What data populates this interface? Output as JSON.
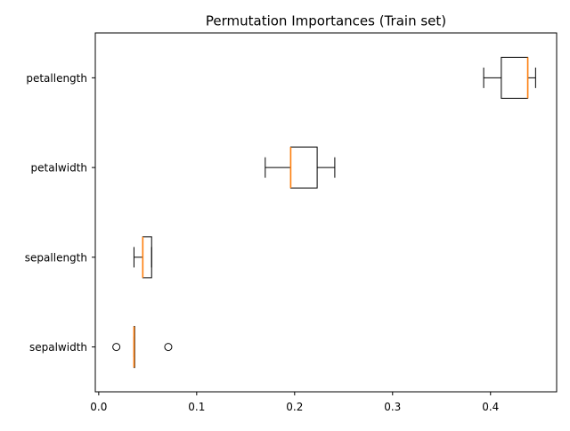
{
  "chart_data": {
    "type": "box",
    "title": "Permutation Importances (Train set)",
    "xlabel": "",
    "ylabel": "",
    "xlim": [
      -0.0035,
      0.4675
    ],
    "xticks": [
      0.0,
      0.1,
      0.2,
      0.3,
      0.4
    ],
    "xtick_labels": [
      "0.0",
      "0.1",
      "0.2",
      "0.3",
      "0.4"
    ],
    "grid": false,
    "orientation": "horizontal",
    "categories": [
      "petallength",
      "petalwidth",
      "sepallength",
      "sepalwidth"
    ],
    "boxes": [
      {
        "label": "petallength",
        "whisker_low": 0.393,
        "q1": 0.411,
        "median": 0.438,
        "q3": 0.438,
        "whisker_high": 0.446,
        "fliers": []
      },
      {
        "label": "petalwidth",
        "whisker_low": 0.17,
        "q1": 0.196,
        "median": 0.196,
        "q3": 0.223,
        "whisker_high": 0.241,
        "fliers": []
      },
      {
        "label": "sepallength",
        "whisker_low": 0.036,
        "q1": 0.045,
        "median": 0.045,
        "q3": 0.054,
        "whisker_high": 0.054,
        "fliers": []
      },
      {
        "label": "sepalwidth",
        "whisker_low": 0.036,
        "q1": 0.036,
        "median": 0.036,
        "q3": 0.036,
        "whisker_high": 0.036,
        "fliers": [
          0.018,
          0.071
        ]
      }
    ],
    "colors": {
      "box": "#000000",
      "median": "#ff7f0e",
      "axes": "#000000",
      "text": "#000000"
    }
  }
}
